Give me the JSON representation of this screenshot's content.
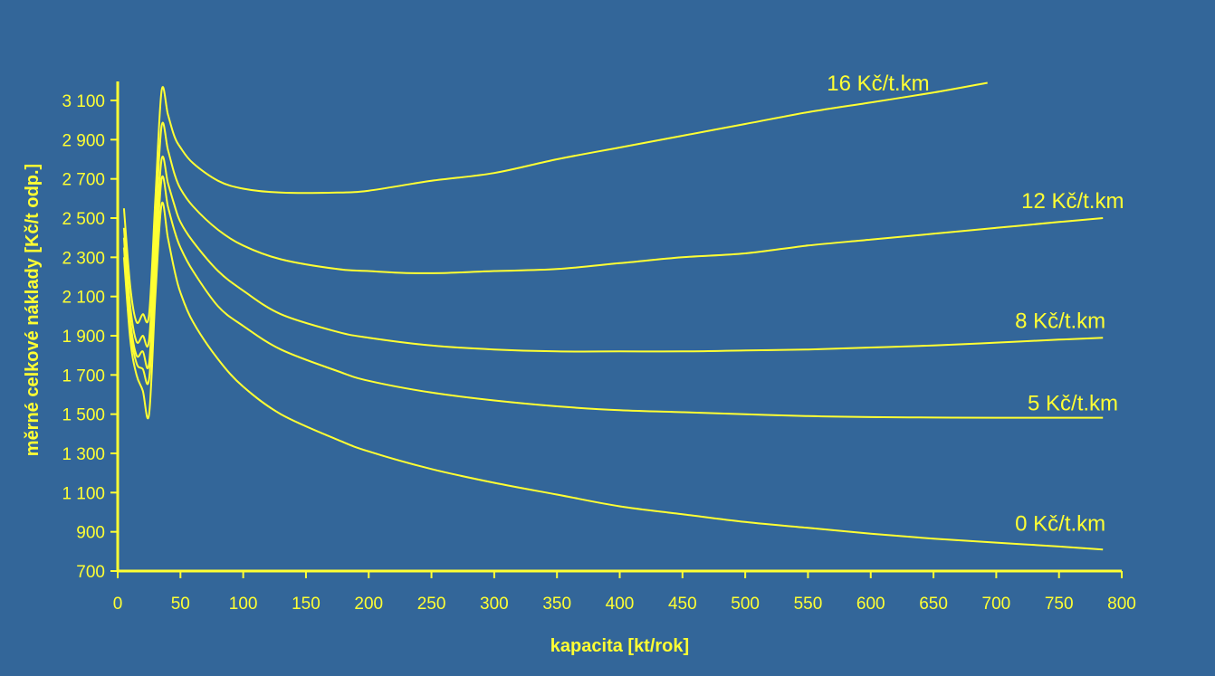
{
  "chart_data": {
    "type": "line",
    "xlabel": "kapacita [kt/rok]",
    "ylabel": "měrné celkové náklady [Kč/t odp.]",
    "xlim": [
      0,
      800
    ],
    "ylim": [
      700,
      3100
    ],
    "x_ticks": [
      0,
      50,
      100,
      150,
      200,
      250,
      300,
      350,
      400,
      450,
      500,
      550,
      600,
      650,
      700,
      750,
      800
    ],
    "x_tick_labels": [
      "0",
      "50",
      "100",
      "150",
      "200",
      "250",
      "300",
      "350",
      "400",
      "450",
      "500",
      "550",
      "600",
      "650",
      "700",
      "750",
      "800"
    ],
    "y_ticks": [
      700,
      900,
      1100,
      1300,
      1500,
      1700,
      1900,
      2100,
      2300,
      2500,
      2700,
      2900,
      3100
    ],
    "y_tick_labels": [
      "700",
      "900",
      "1 100",
      "1 300",
      "1 500",
      "1 700",
      "1 900",
      "2 100",
      "2 300",
      "2 500",
      "2 700",
      "2 900",
      "3 100"
    ],
    "grid": false,
    "legend": "none",
    "line_color": "#ffff33",
    "series": [
      {
        "name": "16 Kč/t.km",
        "points": [
          [
            5,
            2550
          ],
          [
            10,
            2150
          ],
          [
            15,
            1970
          ],
          [
            20,
            2010
          ],
          [
            25,
            2010
          ],
          [
            30,
            2600
          ],
          [
            35,
            3150
          ],
          [
            40,
            3030
          ],
          [
            45,
            2920
          ],
          [
            50,
            2860
          ],
          [
            60,
            2780
          ],
          [
            80,
            2690
          ],
          [
            100,
            2650
          ],
          [
            130,
            2630
          ],
          [
            175,
            2630
          ],
          [
            200,
            2640
          ],
          [
            250,
            2690
          ],
          [
            300,
            2730
          ],
          [
            350,
            2800
          ],
          [
            400,
            2860
          ],
          [
            450,
            2920
          ],
          [
            500,
            2980
          ],
          [
            550,
            3040
          ],
          [
            600,
            3090
          ],
          [
            650,
            3140
          ],
          [
            693,
            3190
          ]
        ]
      },
      {
        "name": "12 Kč/t.km",
        "points": [
          [
            5,
            2450
          ],
          [
            10,
            2050
          ],
          [
            15,
            1870
          ],
          [
            20,
            1900
          ],
          [
            25,
            1880
          ],
          [
            30,
            2450
          ],
          [
            35,
            2970
          ],
          [
            40,
            2850
          ],
          [
            45,
            2730
          ],
          [
            50,
            2650
          ],
          [
            60,
            2560
          ],
          [
            80,
            2440
          ],
          [
            100,
            2360
          ],
          [
            130,
            2290
          ],
          [
            175,
            2240
          ],
          [
            200,
            2230
          ],
          [
            230,
            2220
          ],
          [
            260,
            2220
          ],
          [
            300,
            2230
          ],
          [
            350,
            2240
          ],
          [
            400,
            2270
          ],
          [
            450,
            2300
          ],
          [
            500,
            2320
          ],
          [
            550,
            2360
          ],
          [
            600,
            2390
          ],
          [
            650,
            2420
          ],
          [
            700,
            2450
          ],
          [
            750,
            2480
          ],
          [
            785,
            2500
          ]
        ]
      },
      {
        "name": "8 Kč/t.km",
        "points": [
          [
            5,
            2400
          ],
          [
            10,
            1980
          ],
          [
            15,
            1800
          ],
          [
            20,
            1820
          ],
          [
            25,
            1760
          ],
          [
            30,
            2320
          ],
          [
            35,
            2800
          ],
          [
            40,
            2680
          ],
          [
            45,
            2570
          ],
          [
            50,
            2480
          ],
          [
            60,
            2380
          ],
          [
            80,
            2230
          ],
          [
            100,
            2130
          ],
          [
            130,
            2010
          ],
          [
            175,
            1920
          ],
          [
            200,
            1890
          ],
          [
            250,
            1850
          ],
          [
            300,
            1830
          ],
          [
            350,
            1820
          ],
          [
            400,
            1820
          ],
          [
            450,
            1820
          ],
          [
            500,
            1825
          ],
          [
            550,
            1830
          ],
          [
            600,
            1840
          ],
          [
            650,
            1850
          ],
          [
            700,
            1865
          ],
          [
            750,
            1880
          ],
          [
            785,
            1890
          ]
        ]
      },
      {
        "name": "5 Kč/t.km",
        "points": [
          [
            5,
            2350
          ],
          [
            10,
            1930
          ],
          [
            15,
            1760
          ],
          [
            20,
            1730
          ],
          [
            25,
            1680
          ],
          [
            30,
            2200
          ],
          [
            35,
            2700
          ],
          [
            40,
            2560
          ],
          [
            45,
            2440
          ],
          [
            50,
            2350
          ],
          [
            60,
            2230
          ],
          [
            80,
            2050
          ],
          [
            100,
            1950
          ],
          [
            130,
            1830
          ],
          [
            175,
            1720
          ],
          [
            200,
            1670
          ],
          [
            250,
            1610
          ],
          [
            300,
            1570
          ],
          [
            350,
            1540
          ],
          [
            400,
            1520
          ],
          [
            450,
            1510
          ],
          [
            500,
            1500
          ],
          [
            550,
            1490
          ],
          [
            600,
            1485
          ],
          [
            650,
            1483
          ],
          [
            700,
            1482
          ],
          [
            785,
            1482
          ]
        ]
      },
      {
        "name": "0 Kč/t.km",
        "points": [
          [
            5,
            2300
          ],
          [
            10,
            1880
          ],
          [
            15,
            1700
          ],
          [
            20,
            1620
          ],
          [
            25,
            1500
          ],
          [
            30,
            2100
          ],
          [
            35,
            2570
          ],
          [
            40,
            2400
          ],
          [
            45,
            2240
          ],
          [
            50,
            2120
          ],
          [
            60,
            1970
          ],
          [
            80,
            1780
          ],
          [
            100,
            1640
          ],
          [
            130,
            1500
          ],
          [
            175,
            1370
          ],
          [
            200,
            1310
          ],
          [
            250,
            1220
          ],
          [
            300,
            1150
          ],
          [
            350,
            1090
          ],
          [
            400,
            1030
          ],
          [
            450,
            990
          ],
          [
            500,
            950
          ],
          [
            550,
            920
          ],
          [
            600,
            890
          ],
          [
            650,
            865
          ],
          [
            700,
            845
          ],
          [
            750,
            825
          ],
          [
            785,
            810
          ]
        ]
      }
    ],
    "series_label_anchors": [
      [
        565,
        3150
      ],
      [
        720,
        2550
      ],
      [
        715,
        1940
      ],
      [
        725,
        1520
      ],
      [
        715,
        905
      ]
    ]
  }
}
